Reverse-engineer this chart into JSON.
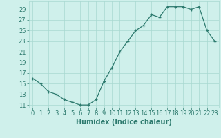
{
  "x": [
    0,
    1,
    2,
    3,
    4,
    5,
    6,
    7,
    8,
    9,
    10,
    11,
    12,
    13,
    14,
    15,
    16,
    17,
    18,
    19,
    20,
    21,
    22,
    23
  ],
  "y": [
    16,
    15,
    13.5,
    13,
    12,
    11.5,
    11,
    11,
    12,
    15.5,
    18,
    21,
    23,
    25,
    26,
    28,
    27.5,
    29.5,
    29.5,
    29.5,
    29,
    29.5,
    25,
    23
  ],
  "xlabel": "Humidex (Indice chaleur)",
  "xlim": [
    -0.5,
    23.5
  ],
  "ylim": [
    10.5,
    30.5
  ],
  "yticks": [
    11,
    13,
    15,
    17,
    19,
    21,
    23,
    25,
    27,
    29
  ],
  "xticks": [
    0,
    1,
    2,
    3,
    4,
    5,
    6,
    7,
    8,
    9,
    10,
    11,
    12,
    13,
    14,
    15,
    16,
    17,
    18,
    19,
    20,
    21,
    22,
    23
  ],
  "line_color": "#2d7a6e",
  "marker": "+",
  "bg_color": "#cff0eb",
  "grid_color": "#a8d8d0",
  "label_fontsize": 7,
  "tick_fontsize": 6
}
